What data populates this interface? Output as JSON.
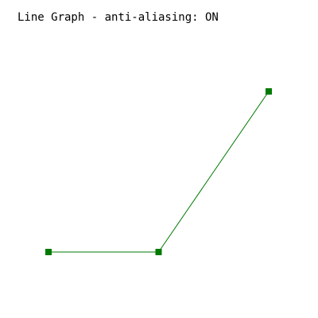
{
  "header": {
    "title": "Line Graph - anti-aliasing: ON"
  },
  "chart_data": {
    "type": "line",
    "title": "Line Graph - anti-aliasing: ON",
    "x": [
      1,
      2,
      3
    ],
    "series": [
      {
        "values": [
          1,
          1,
          3.2
        ],
        "color": "#007a00"
      }
    ],
    "xlim": [
      1,
      3
    ],
    "ylim": [
      1,
      3.2
    ],
    "axes_visible": false,
    "grid": false,
    "legend": "none",
    "markers": "square"
  }
}
